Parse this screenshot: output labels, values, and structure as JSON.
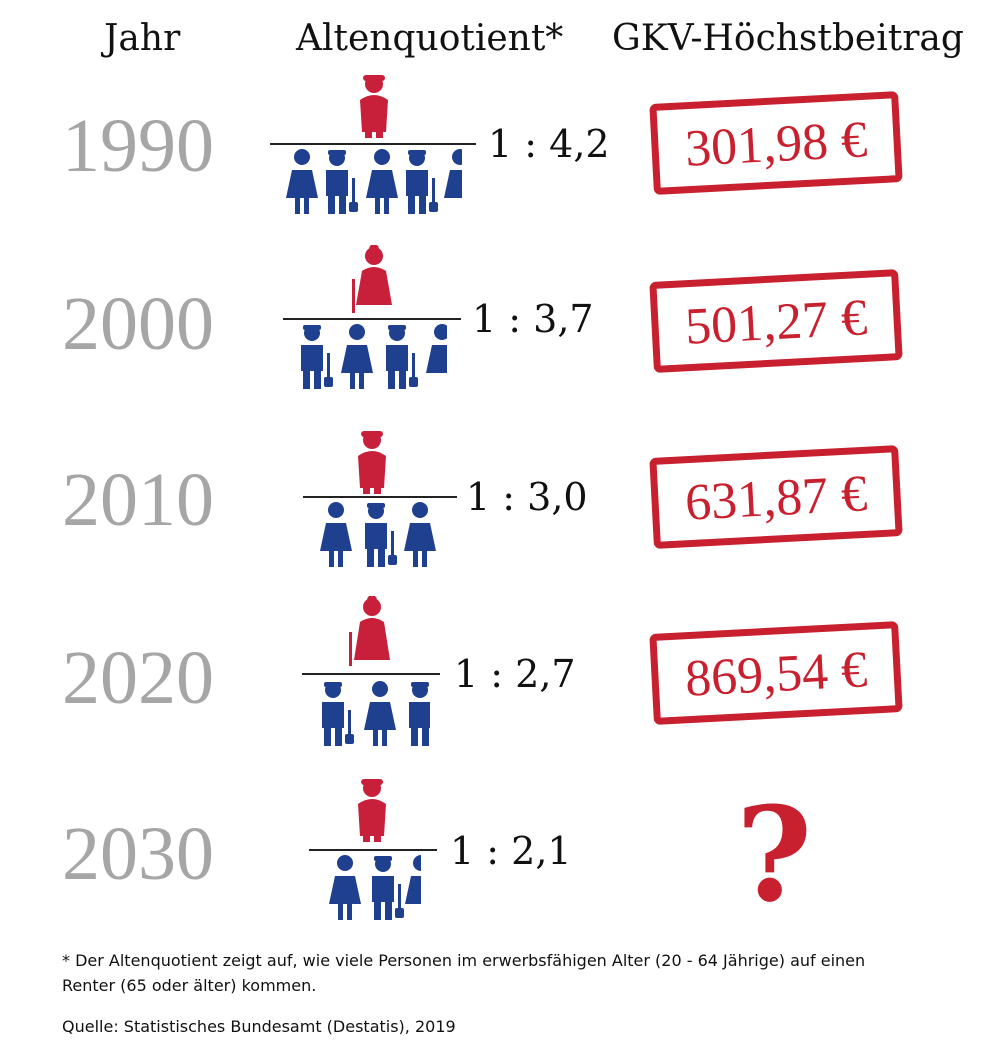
{
  "header": {
    "col_year": "Jahr",
    "col_quotient": "Altenquotient*",
    "col_contribution": "GKV-Höchstbeitrag"
  },
  "rows": [
    {
      "year": "1990",
      "ratio": "1 : 4,2",
      "contribution": "301,98 €",
      "workers": 4.2,
      "retiree": "man"
    },
    {
      "year": "2000",
      "ratio": "1 : 3,7",
      "contribution": "501,27 €",
      "workers": 3.7,
      "retiree": "woman"
    },
    {
      "year": "2010",
      "ratio": "1 : 3,0",
      "contribution": "631,87 €",
      "workers": 3.0,
      "retiree": "man"
    },
    {
      "year": "2020",
      "ratio": "1 : 2,7",
      "contribution": "869,54 €",
      "workers": 2.7,
      "retiree": "woman"
    },
    {
      "year": "2030",
      "ratio": "1 : 2,1",
      "contribution": "?",
      "workers": 2.1,
      "retiree": "man"
    }
  ],
  "footnote": {
    "line1": "* Der Altenquotient zeigt auf, wie viele Personen im erwerbsfähigen Alter (20 - 64 Jährige) auf einen",
    "line2": "Renter (65 oder älter) kommen.",
    "source": "Quelle: Statistisches Bundesamt (Destatis), 2019"
  },
  "colors": {
    "retiree": "#c8203a",
    "worker": "#1f3f8f",
    "stamp": "#c8202f",
    "year": "#a6a6a6"
  },
  "icons": {
    "retiree_man": "elderly-man-icon",
    "retiree_woman": "elderly-woman-icon",
    "worker_woman": "worker-woman-icon",
    "worker_man": "construction-worker-icon",
    "stamp": "stamp-frame-icon"
  }
}
